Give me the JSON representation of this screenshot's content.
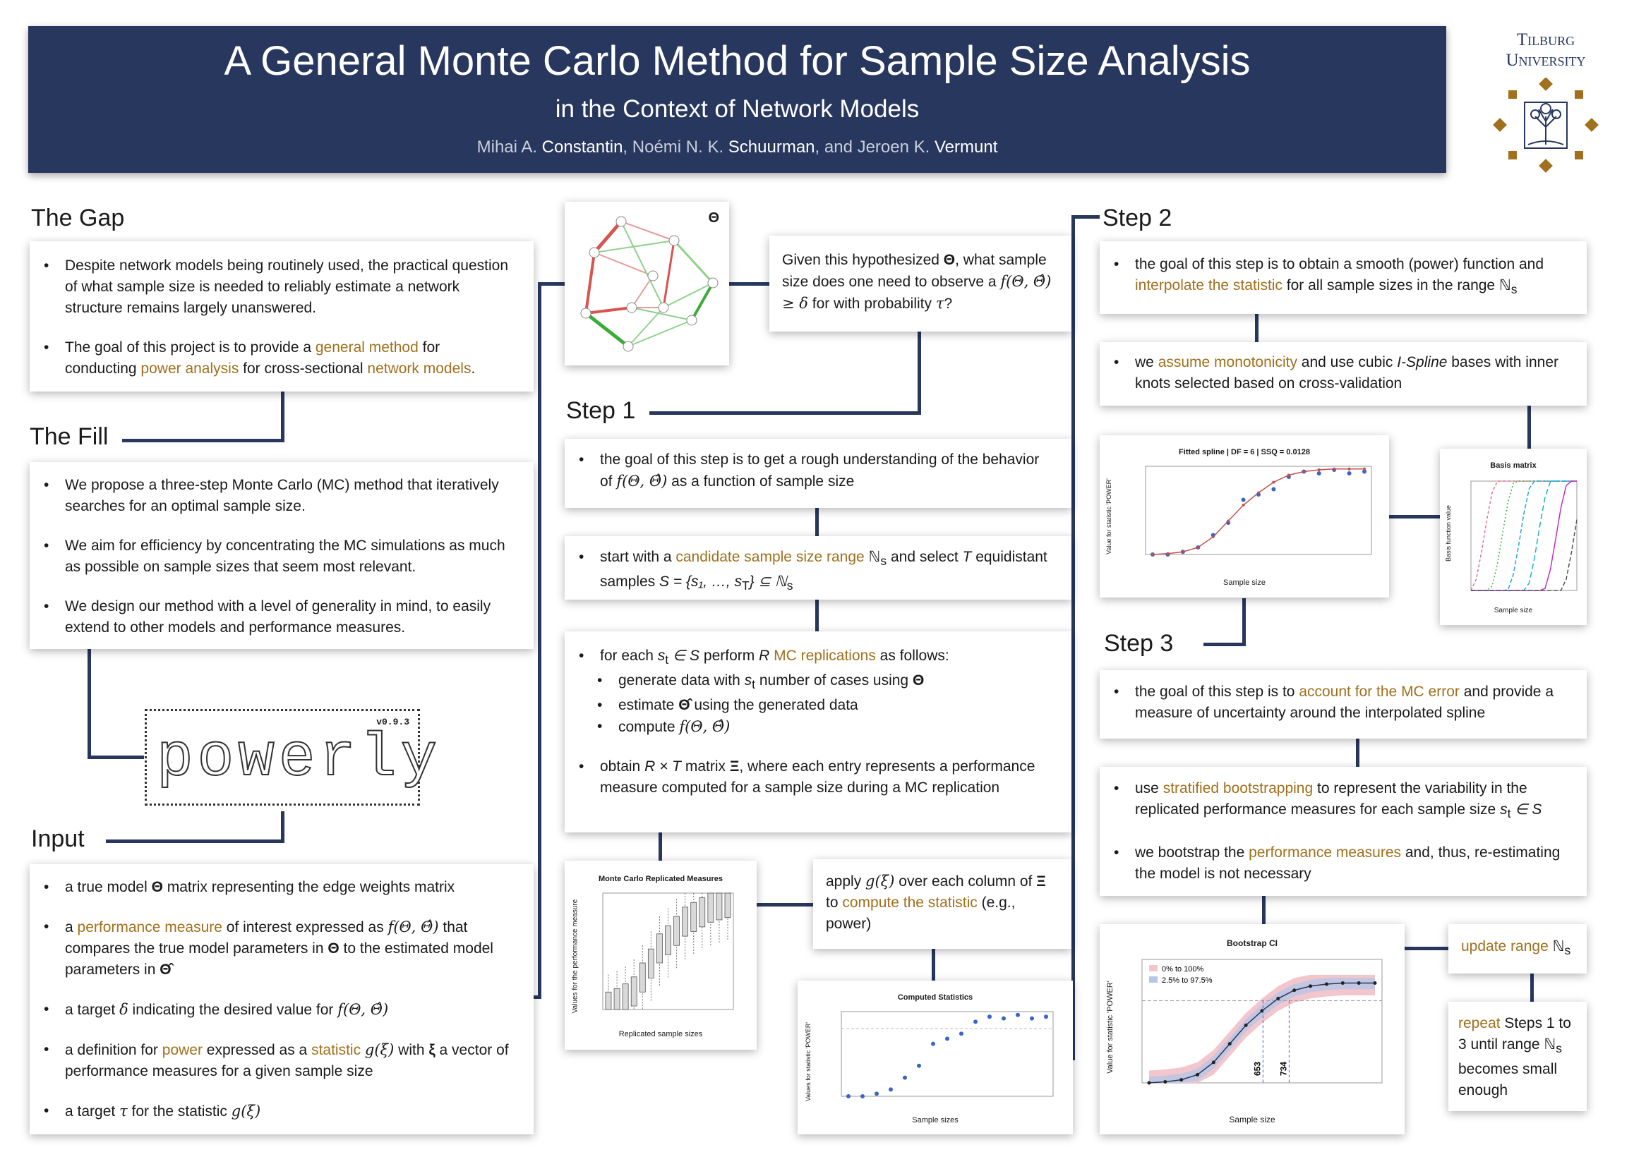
{
  "header": {
    "title": "A General Monte Carlo Method for Sample Size Analysis",
    "subtitle": "in the Context of Network Models",
    "authors": [
      {
        "first": "Mihai A. ",
        "last": "Constantin"
      },
      {
        "first": "Noémi N. K. ",
        "last": "Schuurman"
      },
      {
        "first": "Jeroen K. ",
        "last": "Vermunt"
      }
    ],
    "sep1": ", ",
    "sep2": ", and "
  },
  "logo": {
    "line1": "Tilburg",
    "line2": "University"
  },
  "sections": {
    "gap": "The Gap",
    "fill": "The Fill",
    "input": "Input",
    "step1": "Step 1",
    "step2": "Step 2",
    "step3": "Step 3"
  },
  "gap": {
    "b1": "Despite network models being routinely used, the practical question of what sample size is needed to reliably estimate a network structure remains largely unanswered.",
    "b2_a": "The goal of this project is to provide a ",
    "b2_h1": "general method",
    "b2_b": " for conducting ",
    "b2_h2": "power analysis",
    "b2_c": " for cross-sectional ",
    "b2_h3": "network models",
    "b2_d": "."
  },
  "fill": {
    "b1": "We propose a three-step Monte Carlo (MC) method that iteratively searches for an optimal sample size.",
    "b2": "We aim for efficiency by concentrating the MC simulations as much as possible on sample sizes that seem most relevant.",
    "b3": "We design our method with a level of generality in mind, to easily extend to other models and performance measures."
  },
  "powerly": {
    "name": "powerly",
    "version": "v0.9.3"
  },
  "input": {
    "b1_a": "a true model ",
    "b1_m": "Θ",
    "b1_b": " matrix representing the edge weights matrix",
    "b2_a": "a ",
    "b2_h": "performance measure",
    "b2_b": " of interest expressed as ",
    "b2_m1": "f(Θ, Θ̂)",
    "b2_c": " that compares the true model parameters in ",
    "b2_m2": "Θ",
    "b2_d": " to the estimated model parameters in ",
    "b2_m3": "Θ̂",
    "b3_a": "a target ",
    "b3_m1": "δ",
    "b3_b": " indicating the desired value for ",
    "b3_m2": "f(Θ, Θ̂)",
    "b4_a": "a definition for ",
    "b4_h1": "power",
    "b4_b": " expressed as a ",
    "b4_h2": "statistic",
    "b4_c": " ",
    "b4_m1": "g(ξ)",
    "b4_d": " with ",
    "b4_m2": "ξ",
    "b4_e": " a vector of performance measures for a given sample size",
    "b5_a": "a target ",
    "b5_m1": "τ",
    "b5_b": " for the statistic ",
    "b5_m2": "g(ξ)"
  },
  "theta_label": "Θ",
  "question": {
    "a": "Given this hypothesized ",
    "m1": "Θ",
    "b": ", what sample size does one need to observe a ",
    "m2": "f(Θ, Θ̂) ≥ δ",
    "c": " for with probability ",
    "m3": "τ",
    "d": "?"
  },
  "step1": {
    "box1_a": "the goal of this step is to get a rough understanding of the behavior of ",
    "box1_m": "f(Θ, Θ̂)",
    "box1_b": " as a function of sample size",
    "box2_a": "start with a ",
    "box2_h": "candidate sample size range",
    "box2_m1": " ℕ",
    "box2_m1s": "s",
    "box2_b": " and select ",
    "box2_m2": "T",
    "box2_c": " equidistant samples ",
    "box2_m3": "S = {s₁, …, s",
    "box2_m3s": "T",
    "box2_m4": "} ⊆ ℕ",
    "box2_m4s": "s",
    "box3_a": "for each ",
    "box3_m1": "s",
    "box3_m1s": "t",
    "box3_m2": " ∈ S",
    "box3_b": " perform ",
    "box3_m3": "R",
    "box3_h": " MC replications",
    "box3_c": " as follows:",
    "sub1_a": "generate data with ",
    "sub1_m": "s",
    "sub1_ms": "t",
    "sub1_b": " number of cases using ",
    "sub1_m2": "Θ",
    "sub2_a": "estimate ",
    "sub2_m": "Θ̂",
    "sub2_b": " using the generated data",
    "sub3_a": "compute ",
    "sub3_m": "f(Θ, Θ̂)",
    "box3_d_a": "obtain ",
    "box3_d_m1": "R × T",
    "box3_d_b": " matrix ",
    "box3_d_m2": "Ξ",
    "box3_d_c": ", where each entry represents a performance measure computed for a sample size during a MC replication",
    "apply_a": "apply ",
    "apply_m1": "g(ξ)",
    "apply_b": " over each column of ",
    "apply_m2": "Ξ",
    "apply_c": " to ",
    "apply_h": "compute the statistic",
    "apply_d": " (e.g., power)"
  },
  "step2": {
    "b1_a": "the goal of this step is to obtain a smooth (power) function and ",
    "b1_h": "interpolate the statistic",
    "b1_b": " for all sample sizes in the range ",
    "b1_m": "ℕ",
    "b1_ms": "s",
    "b2_a": "we ",
    "b2_h": "assume monotonicity",
    "b2_b": " and use cubic ",
    "b2_i": "I-Spline",
    "b2_c": " bases with inner knots selected based on cross-validation"
  },
  "step3": {
    "b1_a": "the goal of this step is to ",
    "b1_h": "account for the MC error",
    "b1_b": " and provide a measure of uncertainty around the interpolated spline",
    "b2_a": "use ",
    "b2_h": "stratified bootstrapping",
    "b2_b": " to represent the variability in the replicated performance measures for each sample size ",
    "b2_m": "s",
    "b2_ms": "t",
    "b2_m2": " ∈ S",
    "b3_a": "we bootstrap the ",
    "b3_h": "performance measures",
    "b3_b": " and, thus, re-estimating the model is not necessary",
    "update_h": "update range",
    "update_m": " ℕ",
    "update_ms": "s",
    "repeat_h": "repeat",
    "repeat_a": " Steps 1 to 3 until range ",
    "repeat_m": "ℕ",
    "repeat_ms": "s",
    "repeat_b": " becomes small enough"
  },
  "charts": {
    "mc": {
      "title": "Monte Carlo Replicated Measures",
      "xlabel": "Replicated sample sizes",
      "ylabel": "Values for the performance measure"
    },
    "computed": {
      "title": "Computed Statistics",
      "xlabel": "Sample sizes",
      "ylabel": "Values for statistic 'POWER'"
    },
    "fitted": {
      "title": "Fitted spline | DF = 6 | SSQ = 0.0128",
      "xlabel": "Sample size",
      "ylabel": "Value for statistic 'POWER'"
    },
    "basis": {
      "title": "Basis matrix",
      "xlabel": "Sample size",
      "ylabel": "Basis function value"
    },
    "boot": {
      "title": "Bootstrap CI",
      "xlabel": "Sample size",
      "ylabel": "Value for statistic 'POWER'",
      "legend1": "0% to 100%",
      "legend2": "2.5% to 97.5%",
      "mark1": "653",
      "mark2": "734"
    }
  },
  "chart_data": [
    {
      "type": "scatter",
      "title": "Computed Statistics",
      "xlabel": "Sample sizes",
      "ylabel": "Values for statistic 'POWER'",
      "x": [
        300,
        350,
        400,
        450,
        500,
        550,
        600,
        650,
        700,
        750,
        800,
        850,
        900,
        950,
        1000
      ],
      "y": [
        0.0,
        0.0,
        0.03,
        0.08,
        0.22,
        0.36,
        0.62,
        0.68,
        0.74,
        0.88,
        0.94,
        0.92,
        0.96,
        0.92,
        0.94
      ],
      "ylim": [
        0,
        1
      ]
    },
    {
      "type": "line",
      "title": "Fitted spline | DF = 6 | SSQ = 0.0128",
      "xlabel": "Sample size",
      "ylabel": "Value for statistic 'POWER'",
      "x": [
        300,
        350,
        400,
        450,
        500,
        550,
        600,
        650,
        700,
        750,
        800,
        850,
        900,
        950,
        1000
      ],
      "y": [
        0.0,
        0.01,
        0.03,
        0.08,
        0.2,
        0.38,
        0.56,
        0.7,
        0.82,
        0.9,
        0.94,
        0.96,
        0.97,
        0.97,
        0.97
      ],
      "points": [
        0.0,
        0.0,
        0.03,
        0.08,
        0.22,
        0.36,
        0.62,
        0.68,
        0.74,
        0.88,
        0.94,
        0.92,
        0.96,
        0.92,
        0.94
      ],
      "ylim": [
        0,
        1
      ]
    },
    {
      "type": "line",
      "title": "Bootstrap CI",
      "xlabel": "Sample size",
      "ylabel": "Value for statistic 'POWER'",
      "x": [
        300,
        350,
        400,
        450,
        500,
        550,
        600,
        650,
        700,
        750,
        800,
        850,
        900,
        950,
        1000
      ],
      "y": [
        0.0,
        0.01,
        0.03,
        0.08,
        0.2,
        0.38,
        0.56,
        0.7,
        0.82,
        0.9,
        0.94,
        0.96,
        0.97,
        0.97,
        0.97
      ],
      "series": [
        {
          "name": "0% to 100%"
        },
        {
          "name": "2.5% to 97.5%"
        }
      ],
      "markers": [
        653,
        734
      ],
      "ylim": [
        0,
        1.2
      ]
    }
  ]
}
